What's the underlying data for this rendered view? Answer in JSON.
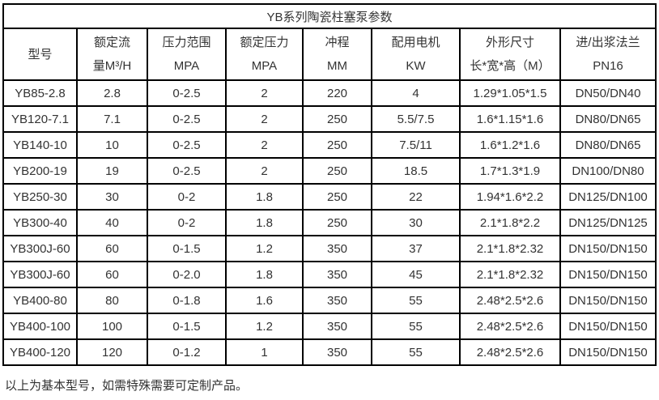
{
  "table": {
    "title": "YB系列陶瓷柱塞泵参数",
    "headers": [
      {
        "line1": "型号",
        "line2": ""
      },
      {
        "line1": "额定流",
        "line2": "量M³/H"
      },
      {
        "line1": "压力范围",
        "line2": "MPA"
      },
      {
        "line1": "额定压力",
        "line2": "MPA"
      },
      {
        "line1": "冲程",
        "line2": "MM"
      },
      {
        "line1": "配用电机",
        "line2": "KW"
      },
      {
        "line1": "外形尺寸",
        "line2": "长*宽*高（M）"
      },
      {
        "line1": "进/出浆法兰",
        "line2": "PN16"
      }
    ],
    "rows": [
      [
        "YB85-2.8",
        "2.8",
        "0-2.5",
        "2",
        "220",
        "4",
        "1.29*1.05*1.5",
        "DN50/DN40"
      ],
      [
        "YB120-7.1",
        "7.1",
        "0-2.5",
        "2",
        "250",
        "5.5/7.5",
        "1.6*1.15*1.6",
        "DN80/DN65"
      ],
      [
        "YB140-10",
        "10",
        "0-2.5",
        "2",
        "250",
        "7.5/11",
        "1.6*1.2*1.6",
        "DN80/DN65"
      ],
      [
        "YB200-19",
        "19",
        "0-2.5",
        "2",
        "250",
        "18.5",
        "1.7*1.3*1.9",
        "DN100/DN80"
      ],
      [
        "YB250-30",
        "30",
        "0-2",
        "1.8",
        "250",
        "22",
        "1.94*1.6*2.2",
        "DN125/DN100"
      ],
      [
        "YB300-40",
        "40",
        "0-2",
        "1.8",
        "250",
        "30",
        "2.1*1.8*2.2",
        "DN125/DN125"
      ],
      [
        "YB300J-60",
        "60",
        "0-1.5",
        "1.2",
        "350",
        "37",
        "2.1*1.8*2.32",
        "DN150/DN150"
      ],
      [
        "YB300J-60",
        "60",
        "0-2.0",
        "1.8",
        "350",
        "45",
        "2.1*1.8*2.32",
        "DN150/DN150"
      ],
      [
        "YB400-80",
        "80",
        "0-1.8",
        "1.6",
        "350",
        "55",
        "2.48*2.5*2.6",
        "DN150/DN150"
      ],
      [
        "YB400-100",
        "100",
        "0-1.5",
        "1.2",
        "350",
        "55",
        "2.48*2.5*2.6",
        "DN150/DN150"
      ],
      [
        "YB400-120",
        "120",
        "0-1.2",
        "1",
        "350",
        "55",
        "2.48*2.5*2.6",
        "DN150/DN150"
      ]
    ]
  },
  "footer": {
    "note": "以上为基本型号，如需特殊需要可定制产品。"
  },
  "colors": {
    "border": "#000000",
    "text": "#333333",
    "background": "#ffffff"
  },
  "chart_data": {
    "type": "table",
    "title": "YB系列陶瓷柱塞泵参数",
    "columns": [
      "型号",
      "额定流量M³/H",
      "压力范围MPA",
      "额定压力MPA",
      "冲程MM",
      "配用电机KW",
      "外形尺寸 长*宽*高（M）",
      "进/出浆法兰PN16"
    ],
    "rows": [
      [
        "YB85-2.8",
        "2.8",
        "0-2.5",
        "2",
        "220",
        "4",
        "1.29*1.05*1.5",
        "DN50/DN40"
      ],
      [
        "YB120-7.1",
        "7.1",
        "0-2.5",
        "2",
        "250",
        "5.5/7.5",
        "1.6*1.15*1.6",
        "DN80/DN65"
      ],
      [
        "YB140-10",
        "10",
        "0-2.5",
        "2",
        "250",
        "7.5/11",
        "1.6*1.2*1.6",
        "DN80/DN65"
      ],
      [
        "YB200-19",
        "19",
        "0-2.5",
        "2",
        "250",
        "18.5",
        "1.7*1.3*1.9",
        "DN100/DN80"
      ],
      [
        "YB250-30",
        "30",
        "0-2",
        "1.8",
        "250",
        "22",
        "1.94*1.6*2.2",
        "DN125/DN100"
      ],
      [
        "YB300-40",
        "40",
        "0-2",
        "1.8",
        "250",
        "30",
        "2.1*1.8*2.2",
        "DN125/DN125"
      ],
      [
        "YB300J-60",
        "60",
        "0-1.5",
        "1.2",
        "350",
        "37",
        "2.1*1.8*2.32",
        "DN150/DN150"
      ],
      [
        "YB300J-60",
        "60",
        "0-2.0",
        "1.8",
        "350",
        "45",
        "2.1*1.8*2.32",
        "DN150/DN150"
      ],
      [
        "YB400-80",
        "80",
        "0-1.8",
        "1.6",
        "350",
        "55",
        "2.48*2.5*2.6",
        "DN150/DN150"
      ],
      [
        "YB400-100",
        "100",
        "0-1.5",
        "1.2",
        "350",
        "55",
        "2.48*2.5*2.6",
        "DN150/DN150"
      ],
      [
        "YB400-120",
        "120",
        "0-1.2",
        "1",
        "350",
        "55",
        "2.48*2.5*2.6",
        "DN150/DN150"
      ]
    ],
    "note": "以上为基本型号，如需特殊需要可定制产品。"
  }
}
